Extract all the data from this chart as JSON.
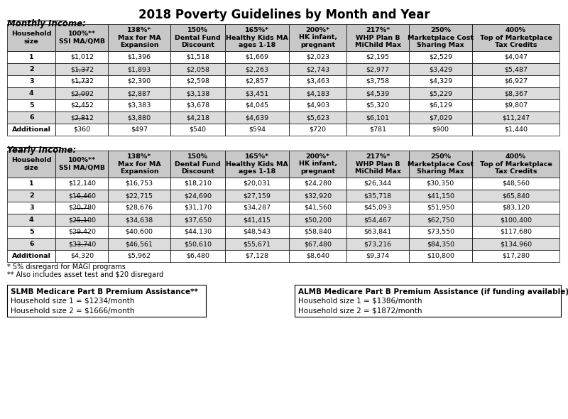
{
  "title": "2018 Poverty Guidelines by Month and Year",
  "monthly_label": "Monthly Income:",
  "yearly_label": "Yearly Income:",
  "col_headers": [
    "Household\nsize",
    "100%**\nSSI MA/QMB",
    "138%*\nMax for MA\nExpansion",
    "150%\nDental Fund\nDiscount",
    "165%*\nHealthy Kids MA\nages 1-18",
    "200%*\nHK infant,\npregnant",
    "217%*\nWHP Plan B\nMiChild Max",
    "250%\nMarketplace Cost\nSharing Max",
    "400%\nTop of Marketplace\nTax Credits"
  ],
  "row_labels": [
    "1",
    "2",
    "3",
    "4",
    "5",
    "6",
    "Additional"
  ],
  "monthly_data": [
    [
      "$1,012",
      "$1,396",
      "$1,518",
      "$1,669",
      "$2,023",
      "$2,195",
      "$2,529",
      "$4,047"
    ],
    [
      "$1,372",
      "$1,893",
      "$2,058",
      "$2,263",
      "$2,743",
      "$2,977",
      "$3,429",
      "$5,487"
    ],
    [
      "$1,732",
      "$2,390",
      "$2,598",
      "$2,857",
      "$3,463",
      "$3,758",
      "$4,329",
      "$6,927"
    ],
    [
      "$2,092",
      "$2,887",
      "$3,138",
      "$3,451",
      "$4,183",
      "$4,539",
      "$5,229",
      "$8,367"
    ],
    [
      "$2,452",
      "$3,383",
      "$3,678",
      "$4,045",
      "$4,903",
      "$5,320",
      "$6,129",
      "$9,807"
    ],
    [
      "$2,812",
      "$3,880",
      "$4,218",
      "$4,639",
      "$5,623",
      "$6,101",
      "$7,029",
      "$11,247"
    ],
    [
      "$360",
      "$497",
      "$540",
      "$594",
      "$720",
      "$781",
      "$900",
      "$1,440"
    ]
  ],
  "monthly_strikethrough": [
    false,
    false,
    true,
    true,
    true,
    true,
    true,
    true,
    true,
    true,
    true,
    true,
    true,
    true
  ],
  "yearly_data": [
    [
      "$12,140",
      "$16,753",
      "$18,210",
      "$20,031",
      "$24,280",
      "$26,344",
      "$30,350",
      "$48,560"
    ],
    [
      "$16,460",
      "$22,715",
      "$24,690",
      "$27,159",
      "$32,920",
      "$35,718",
      "$41,150",
      "$65,840"
    ],
    [
      "$20,780",
      "$28,676",
      "$31,170",
      "$34,287",
      "$41,560",
      "$45,093",
      "$51,950",
      "$83,120"
    ],
    [
      "$25,100",
      "$34,638",
      "$37,650",
      "$41,415",
      "$50,200",
      "$54,467",
      "$62,750",
      "$100,400"
    ],
    [
      "$29,420",
      "$40,600",
      "$44,130",
      "$48,543",
      "$58,840",
      "$63,841",
      "$73,550",
      "$117,680"
    ],
    [
      "$33,740",
      "$46,561",
      "$50,610",
      "$55,671",
      "$67,480",
      "$73,216",
      "$84,350",
      "$134,960"
    ],
    [
      "$4,320",
      "$5,962",
      "$6,480",
      "$7,128",
      "$8,640",
      "$9,374",
      "$10,800",
      "$17,280"
    ]
  ],
  "monthly_strike_rows": [
    2,
    3,
    4,
    5,
    6
  ],
  "yearly_strike_rows": [
    2,
    3,
    4,
    5,
    6
  ],
  "footnotes": [
    "* 5% disregard for MAGI programs",
    "** Also includes asset test and $20 disregard"
  ],
  "slmb_box": {
    "title": "SLMB Medicare Part B Premium Assistance**",
    "lines": [
      "Household size 1 = $1234/month",
      "Household size 2 = $1666/month"
    ]
  },
  "almb_box": {
    "title": "ALMB Medicare Part B Premium Assistance (if funding available)**",
    "lines": [
      "Household size 1 = $1386/month",
      "Household size 2 = $1872/month"
    ]
  },
  "header_bg": "#c8c8c8",
  "row_bg_odd": "#ffffff",
  "row_bg_even": "#dcdcdc",
  "border_color": "#000000",
  "text_color": "#000000",
  "header_text_color": "#000000"
}
